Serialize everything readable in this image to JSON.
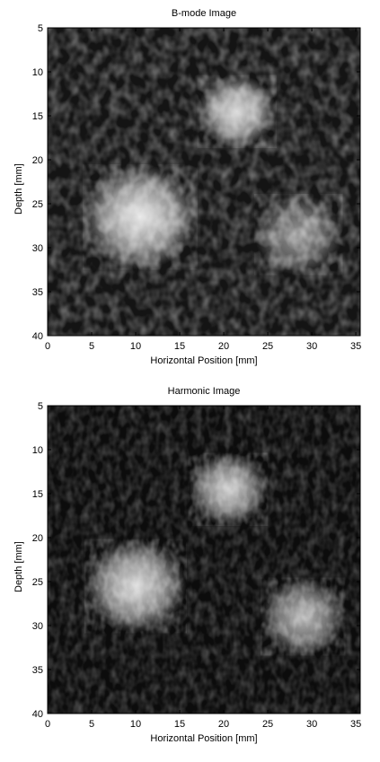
{
  "figure": [
    {
      "title": "B-mode Image",
      "xlabel": "Horizontal Position [mm]",
      "ylabel": "Depth [mm]",
      "xticks": [
        "0",
        "5",
        "10",
        "15",
        "20",
        "25",
        "30",
        "35"
      ],
      "yticks": [
        "5",
        "10",
        "15",
        "20",
        "25",
        "30",
        "35",
        "40"
      ],
      "xlim": [
        0,
        35.5
      ],
      "ylim": [
        5,
        40
      ],
      "blobs": [
        {
          "x": 21.5,
          "y": 14.5,
          "r": 4.5,
          "intensity": 0.85
        },
        {
          "x": 10.5,
          "y": 26.5,
          "r": 6.5,
          "intensity": 0.9
        },
        {
          "x": 28.5,
          "y": 28.5,
          "r": 5.0,
          "intensity": 0.55
        }
      ]
    },
    {
      "title": "Harmonic Image",
      "xlabel": "Horizontal Position [mm]",
      "ylabel": "Depth [mm]",
      "xticks": [
        "0",
        "5",
        "10",
        "15",
        "20",
        "25",
        "30",
        "35"
      ],
      "yticks": [
        "5",
        "10",
        "15",
        "20",
        "25",
        "30",
        "35",
        "40"
      ],
      "xlim": [
        0,
        35.5
      ],
      "ylim": [
        5,
        40
      ],
      "blobs": [
        {
          "x": 20.5,
          "y": 14.5,
          "r": 4.5,
          "intensity": 0.8
        },
        {
          "x": 10.0,
          "y": 25.5,
          "r": 5.8,
          "intensity": 0.85
        },
        {
          "x": 29.0,
          "y": 29.0,
          "r": 4.8,
          "intensity": 0.7
        }
      ]
    }
  ]
}
